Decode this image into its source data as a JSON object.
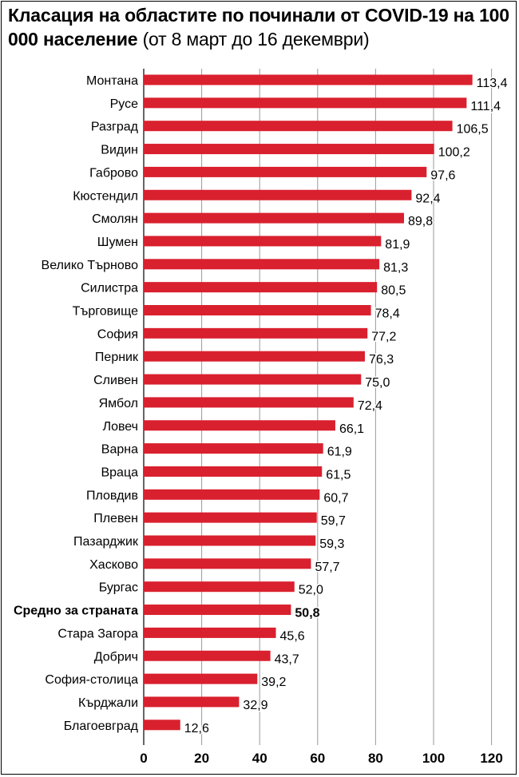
{
  "chart_data": {
    "type": "bar",
    "orientation": "horizontal",
    "title": "Класация на областите по починали от COVID-19 на 100 000 население",
    "subtitle": "(от 8 март до 16 декември)",
    "xlabel": "",
    "ylabel": "",
    "xlim": [
      0,
      120
    ],
    "xticks": [
      "0",
      "20",
      "40",
      "60",
      "80",
      "100",
      "120"
    ],
    "grid": true,
    "bar_color": "#d9202e",
    "categories": [
      "Монтана",
      "Русе",
      "Разград",
      "Видин",
      "Габрово",
      "Кюстендил",
      "Смолян",
      "Шумен",
      "Велико Търново",
      "Силистра",
      "Търговище",
      "София",
      "Перник",
      "Сливен",
      "Ямбол",
      "Ловеч",
      "Варна",
      "Враца",
      "Пловдив",
      "Плевен",
      "Пазарджик",
      "Хасково",
      "Бургас",
      "Средно за страната",
      "Стара Загора",
      "Добрич",
      "София-столица",
      "Кърджали",
      "Благоевград"
    ],
    "values": [
      113.4,
      111.4,
      106.5,
      100.2,
      97.6,
      92.4,
      89.8,
      81.9,
      81.3,
      80.5,
      78.4,
      77.2,
      76.3,
      75.0,
      72.4,
      66.1,
      61.9,
      61.5,
      60.7,
      59.7,
      59.3,
      57.7,
      52.0,
      50.8,
      45.6,
      43.7,
      39.2,
      32.9,
      12.6
    ],
    "value_labels": [
      "113,4",
      "111,4",
      "106,5",
      "100,2",
      "97,6",
      "92,4",
      "89,8",
      "81,9",
      "81,3",
      "80,5",
      "78,4",
      "77,2",
      "76,3",
      "75,0",
      "72,4",
      "66,1",
      "61,9",
      "61,5",
      "60,7",
      "59,7",
      "59,3",
      "57,7",
      "52,0",
      "50,8",
      "45,6",
      "43,7",
      "39,2",
      "32,9",
      "12,6"
    ],
    "highlighted_category": "Средно за страната"
  }
}
